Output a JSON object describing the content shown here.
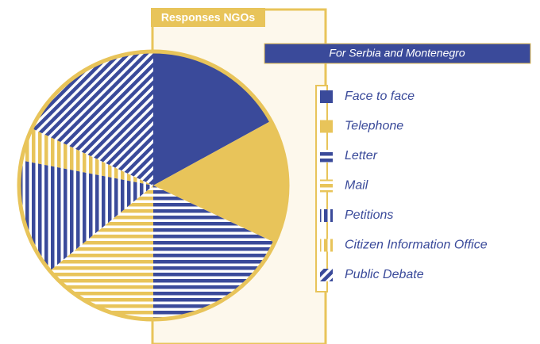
{
  "chart_data": {
    "type": "pie",
    "title": "Responses NGOs",
    "subtitle": "For Serbia and Montenegro",
    "categories": [
      "Face to face",
      "Telephone",
      "Letter",
      "Mail",
      "Petitions",
      "Citizen Information Office",
      "Public Debate"
    ],
    "values": [
      17,
      15,
      18,
      14,
      14,
      4,
      18
    ],
    "colors": [
      "#3a4a9a",
      "#e8c45a",
      "#3a4a9a",
      "#e8c45a",
      "#3a4a9a",
      "#e8c45a",
      "#3a4a9a"
    ],
    "patterns": [
      "solid",
      "solid",
      "horizontal",
      "horizontal",
      "vertical",
      "vertical",
      "diagonal"
    ]
  }
}
